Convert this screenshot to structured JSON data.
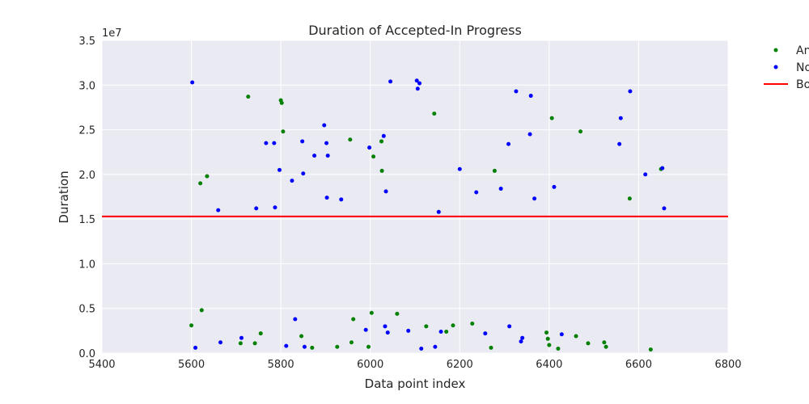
{
  "chart_data": {
    "type": "scatter",
    "title": "Duration of Accepted-In Progress",
    "xlabel": "Data point index",
    "ylabel": "Duration",
    "y_offset_label": "1e7",
    "xlim": [
      5400,
      6800
    ],
    "ylim": [
      0,
      35000000
    ],
    "x_ticks": [
      5400,
      5600,
      5800,
      6000,
      6200,
      6400,
      6600,
      6800
    ],
    "x_tick_labels": [
      "5400",
      "5600",
      "5800",
      "6000",
      "6200",
      "6400",
      "6600",
      "6800"
    ],
    "y_ticks": [
      0,
      5000000,
      10000000,
      15000000,
      20000000,
      25000000,
      30000000,
      35000000
    ],
    "y_tick_labels": [
      "0.0",
      "0.5",
      "1.0",
      "1.5",
      "2.0",
      "2.5",
      "3.0",
      "3.5"
    ],
    "grid": true,
    "legend_position": "outside top-right",
    "legend": [
      {
        "label": "An",
        "marker": "dot",
        "color": "#008000"
      },
      {
        "label": "No",
        "marker": "dot",
        "color": "#0000ff"
      },
      {
        "label": "Bo",
        "marker": "line",
        "color": "#ff0000"
      }
    ],
    "threshold": {
      "name": "Bo",
      "y": 15300000,
      "color": "#ff0000"
    },
    "series": [
      {
        "name": "An",
        "color": "#008000",
        "points": [
          [
            5600,
            3100000
          ],
          [
            5620,
            19000000
          ],
          [
            5623,
            4800000
          ],
          [
            5635,
            19800000
          ],
          [
            5710,
            1100000
          ],
          [
            5727,
            28700000
          ],
          [
            5742,
            1100000
          ],
          [
            5755,
            2200000
          ],
          [
            5800,
            28300000
          ],
          [
            5802,
            28000000
          ],
          [
            5805,
            24800000
          ],
          [
            5846,
            1900000
          ],
          [
            5870,
            600000
          ],
          [
            5926,
            700000
          ],
          [
            5955,
            23900000
          ],
          [
            5958,
            1200000
          ],
          [
            5962,
            3800000
          ],
          [
            5996,
            700000
          ],
          [
            6003,
            4500000
          ],
          [
            6007,
            22000000
          ],
          [
            6025,
            23700000
          ],
          [
            6026,
            20400000
          ],
          [
            6060,
            4400000
          ],
          [
            6125,
            3000000
          ],
          [
            6143,
            26800000
          ],
          [
            6170,
            2400000
          ],
          [
            6185,
            3100000
          ],
          [
            6228,
            3300000
          ],
          [
            6270,
            600000
          ],
          [
            6278,
            20400000
          ],
          [
            6394,
            2300000
          ],
          [
            6397,
            1600000
          ],
          [
            6400,
            900000
          ],
          [
            6406,
            26300000
          ],
          [
            6420,
            500000
          ],
          [
            6460,
            1900000
          ],
          [
            6470,
            24800000
          ],
          [
            6487,
            1100000
          ],
          [
            6523,
            1200000
          ],
          [
            6527,
            700000
          ],
          [
            6580,
            17300000
          ],
          [
            6627,
            400000
          ],
          [
            6650,
            20600000
          ]
        ]
      },
      {
        "name": "No",
        "color": "#0000ff",
        "points": [
          [
            5602,
            30300000
          ],
          [
            5609,
            600000
          ],
          [
            5660,
            16000000
          ],
          [
            5665,
            1200000
          ],
          [
            5712,
            1700000
          ],
          [
            5745,
            16200000
          ],
          [
            5767,
            23500000
          ],
          [
            5785,
            23500000
          ],
          [
            5787,
            16300000
          ],
          [
            5797,
            20500000
          ],
          [
            5812,
            800000
          ],
          [
            5825,
            19300000
          ],
          [
            5832,
            3800000
          ],
          [
            5848,
            23700000
          ],
          [
            5850,
            20100000
          ],
          [
            5853,
            700000
          ],
          [
            5875,
            22100000
          ],
          [
            5897,
            25500000
          ],
          [
            5902,
            23500000
          ],
          [
            5903,
            17400000
          ],
          [
            5905,
            22100000
          ],
          [
            5935,
            17200000
          ],
          [
            5990,
            2600000
          ],
          [
            5998,
            23000000
          ],
          [
            6030,
            24300000
          ],
          [
            6033,
            3000000
          ],
          [
            6035,
            18100000
          ],
          [
            6039,
            2300000
          ],
          [
            6045,
            30400000
          ],
          [
            6085,
            2500000
          ],
          [
            6104,
            30500000
          ],
          [
            6106,
            29600000
          ],
          [
            6110,
            30200000
          ],
          [
            6114,
            500000
          ],
          [
            6145,
            700000
          ],
          [
            6153,
            15800000
          ],
          [
            6158,
            2400000
          ],
          [
            6200,
            20600000
          ],
          [
            6237,
            18000000
          ],
          [
            6257,
            2200000
          ],
          [
            6292,
            18400000
          ],
          [
            6309,
            23400000
          ],
          [
            6311,
            3000000
          ],
          [
            6326,
            29300000
          ],
          [
            6337,
            1300000
          ],
          [
            6340,
            1700000
          ],
          [
            6357,
            24500000
          ],
          [
            6359,
            28800000
          ],
          [
            6367,
            17300000
          ],
          [
            6411,
            18600000
          ],
          [
            6428,
            2100000
          ],
          [
            6557,
            23400000
          ],
          [
            6560,
            26300000
          ],
          [
            6581,
            29300000
          ],
          [
            6615,
            20000000
          ],
          [
            6653,
            20700000
          ],
          [
            6657,
            16200000
          ]
        ]
      }
    ]
  }
}
